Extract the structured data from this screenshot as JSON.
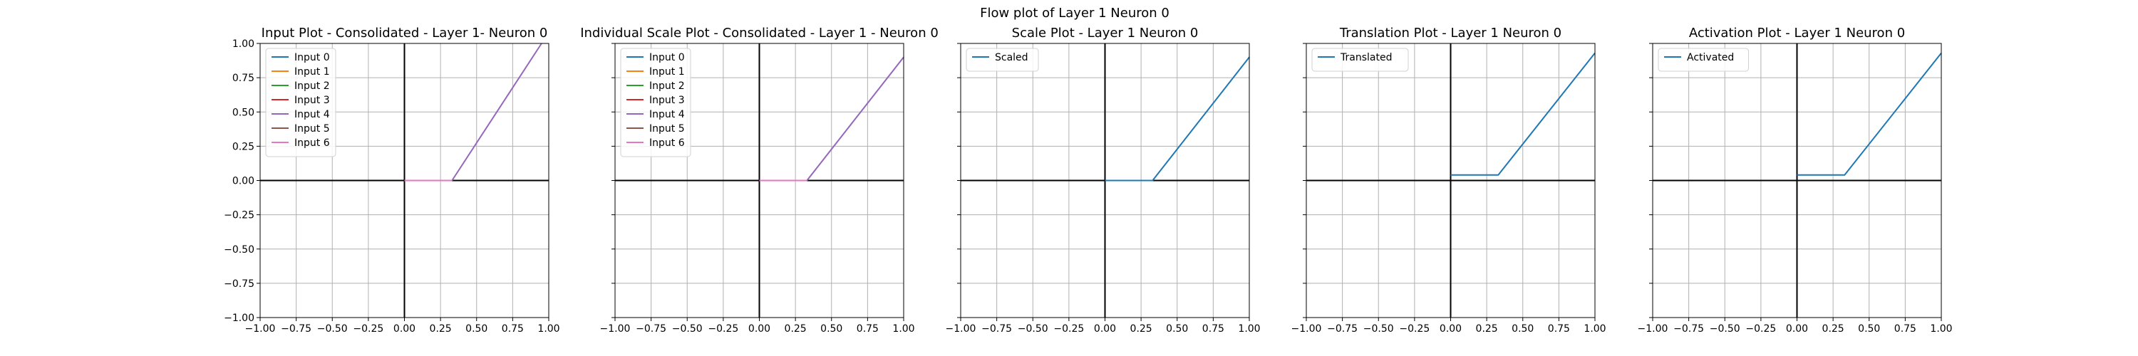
{
  "figure": {
    "suptitle": "Flow plot of Layer 1 Neuron 0"
  },
  "chart_data": [
    {
      "type": "line",
      "title": "Input Plot - Consolidated - Layer 1- Neuron 0",
      "xlim": [
        -1.0,
        1.0
      ],
      "ylim": [
        -1.0,
        1.0
      ],
      "xticks": [
        "−1.00",
        "−0.75",
        "−0.50",
        "−0.25",
        "0.00",
        "0.25",
        "0.50",
        "0.75",
        "1.00"
      ],
      "yticks": [
        "−1.00",
        "−0.75",
        "−0.50",
        "−0.25",
        "0.00",
        "0.25",
        "0.50",
        "0.75",
        "1.00"
      ],
      "show_yticklabels": true,
      "grid": true,
      "legend_position": "upper-left",
      "series": [
        {
          "name": "Input 0",
          "color": "#1f77b4",
          "x": [
            0.0,
            0.33
          ],
          "y": [
            0.0,
            0.0
          ]
        },
        {
          "name": "Input 1",
          "color": "#ff7f0e",
          "x": [
            0.0,
            0.33
          ],
          "y": [
            0.0,
            0.0
          ]
        },
        {
          "name": "Input 2",
          "color": "#2ca02c",
          "x": [
            0.0,
            0.33
          ],
          "y": [
            0.0,
            0.0
          ]
        },
        {
          "name": "Input 3",
          "color": "#d62728",
          "x": [
            0.0,
            0.33
          ],
          "y": [
            0.0,
            0.0
          ]
        },
        {
          "name": "Input 4",
          "color": "#9467bd",
          "x": [
            0.33,
            0.95
          ],
          "y": [
            0.0,
            1.0
          ]
        },
        {
          "name": "Input 5",
          "color": "#8c564b",
          "x": [
            0.0,
            0.33
          ],
          "y": [
            0.0,
            0.0
          ]
        },
        {
          "name": "Input 6",
          "color": "#e377c2",
          "x": [
            0.0,
            0.33
          ],
          "y": [
            0.0,
            0.0
          ]
        }
      ]
    },
    {
      "type": "line",
      "title": "Individual Scale Plot - Consolidated - Layer 1 - Neuron 0",
      "xlim": [
        -1.0,
        1.0
      ],
      "ylim": [
        -1.0,
        1.0
      ],
      "xticks": [
        "−1.00",
        "−0.75",
        "−0.50",
        "−0.25",
        "0.00",
        "0.25",
        "0.50",
        "0.75",
        "1.00"
      ],
      "show_yticklabels": false,
      "grid": true,
      "legend_position": "upper-left",
      "series": [
        {
          "name": "Input 0",
          "color": "#1f77b4",
          "x": [
            0.0,
            0.33
          ],
          "y": [
            0.0,
            0.0
          ]
        },
        {
          "name": "Input 1",
          "color": "#ff7f0e",
          "x": [
            0.0,
            0.33
          ],
          "y": [
            0.0,
            0.0
          ]
        },
        {
          "name": "Input 2",
          "color": "#2ca02c",
          "x": [
            0.0,
            0.33
          ],
          "y": [
            0.0,
            0.0
          ]
        },
        {
          "name": "Input 3",
          "color": "#d62728",
          "x": [
            0.0,
            0.33
          ],
          "y": [
            0.0,
            0.0
          ]
        },
        {
          "name": "Input 4",
          "color": "#9467bd",
          "x": [
            0.33,
            1.0
          ],
          "y": [
            0.0,
            0.9
          ]
        },
        {
          "name": "Input 5",
          "color": "#8c564b",
          "x": [
            0.0,
            0.33
          ],
          "y": [
            0.0,
            0.0
          ]
        },
        {
          "name": "Input 6",
          "color": "#e377c2",
          "x": [
            0.0,
            0.33
          ],
          "y": [
            0.0,
            0.0
          ]
        }
      ]
    },
    {
      "type": "line",
      "title": "Scale Plot - Layer 1 Neuron 0",
      "xlim": [
        -1.0,
        1.0
      ],
      "ylim": [
        -1.0,
        1.0
      ],
      "xticks": [
        "−1.00",
        "−0.75",
        "−0.50",
        "−0.25",
        "0.00",
        "0.25",
        "0.50",
        "0.75",
        "1.00"
      ],
      "show_yticklabels": false,
      "grid": true,
      "legend_position": "upper-left",
      "series": [
        {
          "name": "Scaled",
          "color": "#1f77b4",
          "x": [
            0.0,
            0.33,
            1.0
          ],
          "y": [
            0.0,
            0.0,
            0.9
          ]
        }
      ]
    },
    {
      "type": "line",
      "title": "Translation Plot - Layer 1 Neuron 0",
      "xlim": [
        -1.0,
        1.0
      ],
      "ylim": [
        -1.0,
        1.0
      ],
      "xticks": [
        "−1.00",
        "−0.75",
        "−0.50",
        "−0.25",
        "0.00",
        "0.25",
        "0.50",
        "0.75",
        "1.00"
      ],
      "show_yticklabels": false,
      "grid": true,
      "legend_position": "upper-left",
      "series": [
        {
          "name": "Translated",
          "color": "#1f77b4",
          "x": [
            0.0,
            0.33,
            1.0
          ],
          "y": [
            0.04,
            0.04,
            0.93
          ]
        }
      ]
    },
    {
      "type": "line",
      "title": "Activation Plot - Layer 1 Neuron 0",
      "xlim": [
        -1.0,
        1.0
      ],
      "ylim": [
        -1.0,
        1.0
      ],
      "xticks": [
        "−1.00",
        "−0.75",
        "−0.50",
        "−0.25",
        "0.00",
        "0.25",
        "0.50",
        "0.75",
        "1.00"
      ],
      "show_yticklabels": false,
      "grid": true,
      "legend_position": "upper-left",
      "series": [
        {
          "name": "Activated",
          "color": "#1f77b4",
          "x": [
            0.0,
            0.33,
            1.0
          ],
          "y": [
            0.04,
            0.04,
            0.93
          ]
        }
      ]
    }
  ]
}
